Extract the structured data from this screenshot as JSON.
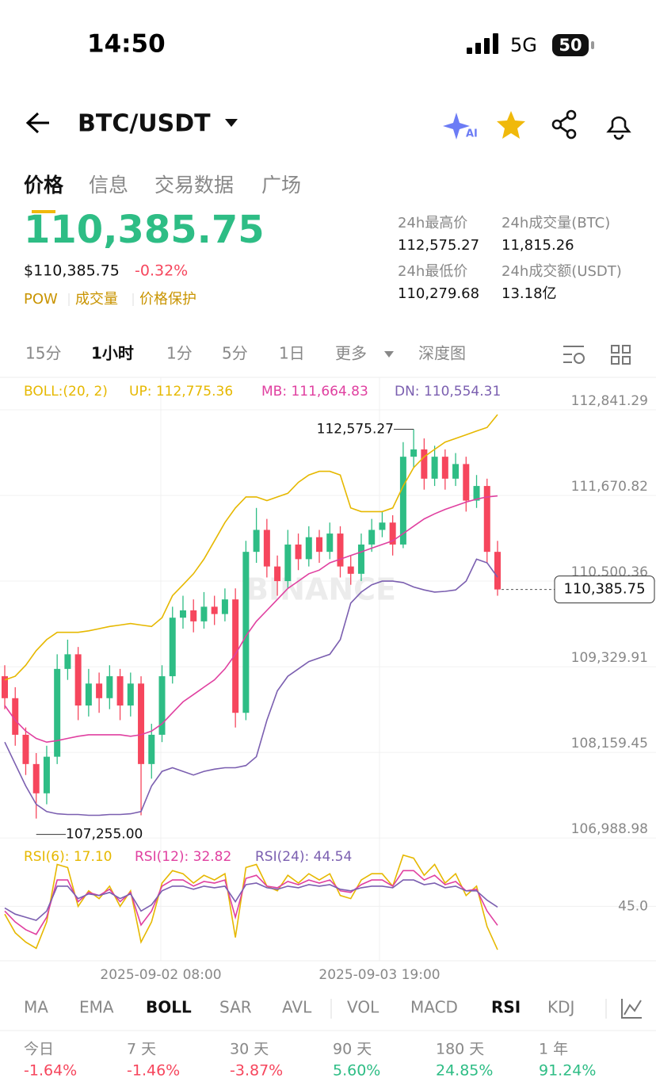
{
  "status_bar": {
    "time": "14:50",
    "network": "5G",
    "battery": "50"
  },
  "header": {
    "pair": "BTC/USDT",
    "ai_badge": "AI"
  },
  "tabs": [
    "价格",
    "信息",
    "交易数据",
    "广场"
  ],
  "price": {
    "last": "110,385.75",
    "usd": "$110,385.75",
    "change": "-0.32%",
    "tags": [
      "POW",
      "成交量",
      "价格保护"
    ]
  },
  "stats": [
    {
      "label": "24h最高价",
      "value": "112,575.27"
    },
    {
      "label": "24h成交量(BTC)",
      "value": "11,815.26"
    },
    {
      "label": "24h最低价",
      "value": "110,279.68"
    },
    {
      "label": "24h成交额(USDT)",
      "value": "13.18亿"
    }
  ],
  "intervals": [
    "15分",
    "1小时",
    "1分",
    "5分",
    "1日",
    "更多",
    "深度图"
  ],
  "chart_data": {
    "type": "candlestick",
    "watermark": "BINANCE",
    "up_color": "#2ebd85",
    "down_color": "#f6465d",
    "indicator": "BOLL:(20, 2)",
    "ylim": [
      106980,
      113285
    ],
    "yticks": [
      {
        "value": 112841.29,
        "label": "112,841.29"
      },
      {
        "value": 111670.82,
        "label": "111,670.82"
      },
      {
        "value": 110500.36,
        "label": "110,500.36"
      },
      {
        "value": 109329.91,
        "label": "109,329.91"
      },
      {
        "value": 108159.45,
        "label": "108,159.45"
      },
      {
        "value": 106988.98,
        "label": "106,988.98"
      }
    ],
    "x_labels": [
      "2025-09-02 08:00",
      "2025-09-03 19:00"
    ],
    "annotations": {
      "high": "112,575.27",
      "low": "107,255.00",
      "last": "110,385.75"
    },
    "candles": [
      [
        109200,
        109350,
        108750,
        108900
      ],
      [
        108900,
        109050,
        108250,
        108400
      ],
      [
        108400,
        108500,
        107850,
        108000
      ],
      [
        108000,
        108150,
        107255,
        107600
      ],
      [
        107600,
        108250,
        107450,
        108100
      ],
      [
        108100,
        109500,
        108000,
        109300
      ],
      [
        109300,
        109700,
        109150,
        109500
      ],
      [
        109500,
        109600,
        108600,
        108800
      ],
      [
        108800,
        109300,
        108650,
        109100
      ],
      [
        109100,
        109250,
        108700,
        108900
      ],
      [
        108900,
        109350,
        108750,
        109200
      ],
      [
        109200,
        109300,
        108600,
        108800
      ],
      [
        108800,
        109250,
        108650,
        109100
      ],
      [
        109100,
        109200,
        107300,
        108000
      ],
      [
        108000,
        108550,
        107800,
        108400
      ],
      [
        108400,
        109350,
        108300,
        109200
      ],
      [
        109200,
        110150,
        109100,
        110000
      ],
      [
        110000,
        110300,
        109850,
        110100
      ],
      [
        110100,
        110250,
        109800,
        109950
      ],
      [
        109950,
        110350,
        109850,
        110150
      ],
      [
        110150,
        110300,
        109900,
        110050
      ],
      [
        110050,
        110400,
        109950,
        110250
      ],
      [
        110250,
        110400,
        108500,
        108700
      ],
      [
        108700,
        111050,
        108600,
        110900
      ],
      [
        110900,
        111500,
        110750,
        111200
      ],
      [
        111200,
        111350,
        110550,
        110700
      ],
      [
        110700,
        110850,
        110300,
        110500
      ],
      [
        110500,
        111200,
        110400,
        111000
      ],
      [
        111000,
        111150,
        110650,
        110800
      ],
      [
        110800,
        111250,
        110700,
        111100
      ],
      [
        111100,
        111200,
        110750,
        110900
      ],
      [
        110900,
        111300,
        110800,
        111150
      ],
      [
        111150,
        111250,
        110550,
        110700
      ],
      [
        110700,
        110850,
        110450,
        110600
      ],
      [
        110600,
        111150,
        110500,
        111000
      ],
      [
        111000,
        111350,
        110900,
        111200
      ],
      [
        111200,
        111450,
        111100,
        111300
      ],
      [
        111300,
        111400,
        110850,
        111000
      ],
      [
        111000,
        112400,
        110950,
        112200
      ],
      [
        112200,
        112575.27,
        112050,
        112300
      ],
      [
        112300,
        112450,
        111750,
        111900
      ],
      [
        111900,
        112350,
        111800,
        112200
      ],
      [
        112200,
        112300,
        111750,
        111900
      ],
      [
        111900,
        112250,
        111800,
        112100
      ],
      [
        112100,
        112200,
        111450,
        111600
      ],
      [
        111600,
        111950,
        111500,
        111800
      ],
      [
        111800,
        111900,
        110750,
        110900
      ],
      [
        110900,
        111050,
        110300,
        110385.75
      ]
    ],
    "series": [
      {
        "legend": "UP: 112,775.36",
        "color": "#e6b800",
        "values": [
          109150,
          109200,
          109350,
          109550,
          109700,
          109800,
          109800,
          109800,
          109820,
          109850,
          109880,
          109900,
          109920,
          109900,
          109880,
          110000,
          110300,
          110450,
          110600,
          110800,
          111050,
          111300,
          111500,
          111650,
          111650,
          111600,
          111650,
          111700,
          111850,
          111950,
          112000,
          112000,
          111950,
          111500,
          111450,
          111450,
          111450,
          111500,
          111800,
          112050,
          112200,
          112300,
          112400,
          112450,
          112500,
          112550,
          112600,
          112775.36
        ]
      },
      {
        "legend": "MB: 111,664.83",
        "color": "#e040a0",
        "values": [
          108800,
          108600,
          108450,
          108350,
          108300,
          108320,
          108350,
          108380,
          108400,
          108400,
          108400,
          108400,
          108380,
          108400,
          108450,
          108550,
          108700,
          108850,
          108950,
          109050,
          109150,
          109300,
          109500,
          109750,
          109950,
          110100,
          110250,
          110400,
          110500,
          110600,
          110650,
          110750,
          110800,
          110850,
          110900,
          110950,
          111000,
          111050,
          111150,
          111250,
          111350,
          111420,
          111480,
          111530,
          111580,
          111620,
          111650,
          111664.83
        ]
      },
      {
        "legend": "DN: 110,554.31",
        "color": "#7b5fb0",
        "values": [
          108300,
          108000,
          107700,
          107450,
          107350,
          107320,
          107310,
          107310,
          107300,
          107300,
          107310,
          107310,
          107320,
          107350,
          107700,
          107900,
          107950,
          107900,
          107850,
          107900,
          107930,
          107950,
          107950,
          107980,
          108100,
          108600,
          109000,
          109200,
          109300,
          109400,
          109450,
          109500,
          109700,
          110200,
          110350,
          110450,
          110500,
          110500,
          110480,
          110420,
          110380,
          110350,
          110360,
          110380,
          110500,
          110800,
          110750,
          110554.31
        ]
      }
    ],
    "rsi": {
      "ylim": [
        10,
        85
      ],
      "yticks": [
        {
          "value": 45,
          "label": "45.0"
        }
      ],
      "series": [
        {
          "legend": "RSI(6): 17.10",
          "color": "#e6b800",
          "values": [
            40,
            28,
            22,
            18,
            35,
            72,
            70,
            45,
            55,
            50,
            58,
            45,
            55,
            22,
            35,
            60,
            68,
            66,
            60,
            65,
            62,
            66,
            25,
            70,
            72,
            58,
            55,
            65,
            60,
            66,
            62,
            66,
            52,
            50,
            62,
            66,
            66,
            58,
            78,
            76,
            65,
            72,
            60,
            66,
            52,
            58,
            32,
            17.1
          ]
        },
        {
          "legend": "RSI(12): 32.82",
          "color": "#e040a0",
          "values": [
            42,
            35,
            30,
            27,
            38,
            62,
            62,
            48,
            54,
            52,
            56,
            48,
            54,
            33,
            42,
            58,
            62,
            62,
            58,
            61,
            60,
            62,
            38,
            63,
            65,
            58,
            57,
            61,
            59,
            62,
            60,
            62,
            55,
            54,
            59,
            62,
            62,
            58,
            68,
            68,
            62,
            65,
            59,
            61,
            55,
            56,
            42,
            32.82
          ]
        },
        {
          "legend": "RSI(24): 44.54",
          "color": "#7b5fb0",
          "values": [
            44,
            40,
            38,
            36,
            42,
            58,
            58,
            50,
            53,
            52,
            54,
            50,
            53,
            42,
            46,
            55,
            58,
            58,
            56,
            58,
            57,
            58,
            48,
            59,
            60,
            57,
            56,
            58,
            57,
            59,
            58,
            59,
            56,
            55,
            57,
            58,
            58,
            57,
            62,
            62,
            59,
            60,
            57,
            58,
            55,
            55,
            49,
            44.54
          ]
        }
      ]
    }
  },
  "indicator_tabs": [
    "MA",
    "EMA",
    "BOLL",
    "SAR",
    "AVL",
    "VOL",
    "MACD",
    "RSI",
    "KDJ"
  ],
  "performance": [
    {
      "period": "今日",
      "change": "-1.64%",
      "color": "#f6465d"
    },
    {
      "period": "7 天",
      "change": "-1.46%",
      "color": "#f6465d"
    },
    {
      "period": "30 天",
      "change": "-3.87%",
      "color": "#f6465d"
    },
    {
      "period": "90 天",
      "change": "5.60%",
      "color": "#2ebd85"
    },
    {
      "period": "180 天",
      "change": "24.85%",
      "color": "#2ebd85"
    },
    {
      "period": "1 年",
      "change": "91.24%",
      "color": "#2ebd85"
    }
  ]
}
